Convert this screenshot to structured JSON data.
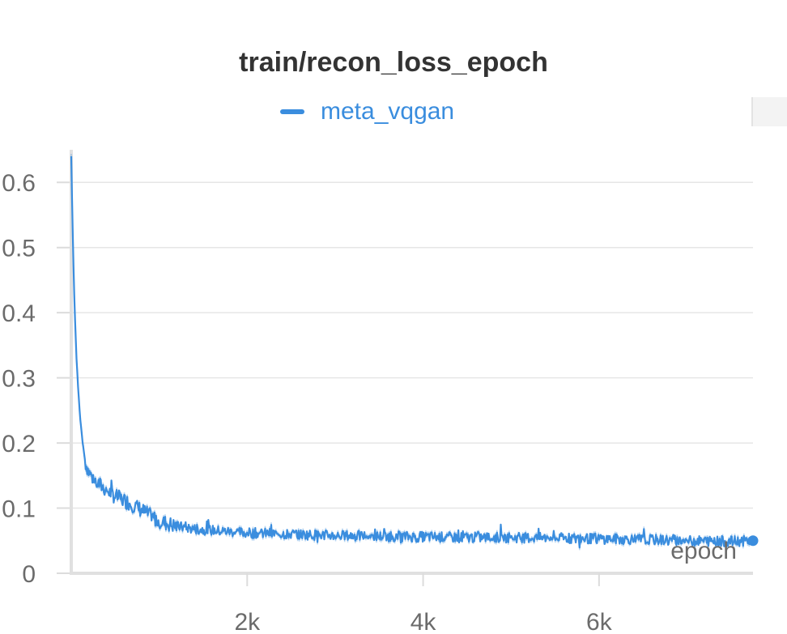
{
  "chart_data": {
    "type": "line",
    "title": "train/recon_loss_epoch",
    "xlabel": "epoch",
    "ylabel": "",
    "xlim": [
      0,
      7750
    ],
    "ylim": [
      0,
      0.65
    ],
    "x_ticks": [
      {
        "value": 2000,
        "label": "2k"
      },
      {
        "value": 4000,
        "label": "4k"
      },
      {
        "value": 6000,
        "label": "6k"
      }
    ],
    "y_ticks": [
      {
        "value": 0,
        "label": "0"
      },
      {
        "value": 0.1,
        "label": "0.1"
      },
      {
        "value": 0.2,
        "label": "0.2"
      },
      {
        "value": 0.3,
        "label": "0.3"
      },
      {
        "value": 0.4,
        "label": "0.4"
      },
      {
        "value": 0.5,
        "label": "0.5"
      },
      {
        "value": 0.6,
        "label": "0.6"
      }
    ],
    "grid": true,
    "legend_position": "top-center",
    "series": [
      {
        "name": "meta_vqgan",
        "color": "#3a8dde",
        "points": [
          [
            0,
            0.64
          ],
          [
            20,
            0.5
          ],
          [
            40,
            0.4
          ],
          [
            60,
            0.33
          ],
          [
            80,
            0.28
          ],
          [
            100,
            0.24
          ],
          [
            130,
            0.2
          ],
          [
            160,
            0.17
          ],
          [
            200,
            0.155
          ],
          [
            250,
            0.145
          ],
          [
            300,
            0.138
          ],
          [
            400,
            0.128
          ],
          [
            500,
            0.118
          ],
          [
            600,
            0.112
          ],
          [
            700,
            0.105
          ],
          [
            800,
            0.097
          ],
          [
            900,
            0.088
          ],
          [
            1000,
            0.08
          ],
          [
            1100,
            0.076
          ],
          [
            1200,
            0.072
          ],
          [
            1400,
            0.068
          ],
          [
            1600,
            0.066
          ],
          [
            1800,
            0.064
          ],
          [
            2000,
            0.062
          ],
          [
            2500,
            0.06
          ],
          [
            3000,
            0.058
          ],
          [
            3500,
            0.057
          ],
          [
            4000,
            0.056
          ],
          [
            4500,
            0.055
          ],
          [
            5000,
            0.055
          ],
          [
            5500,
            0.054
          ],
          [
            6000,
            0.053
          ],
          [
            6500,
            0.052
          ],
          [
            7000,
            0.05
          ],
          [
            7500,
            0.049
          ],
          [
            7750,
            0.05
          ]
        ]
      }
    ]
  }
}
